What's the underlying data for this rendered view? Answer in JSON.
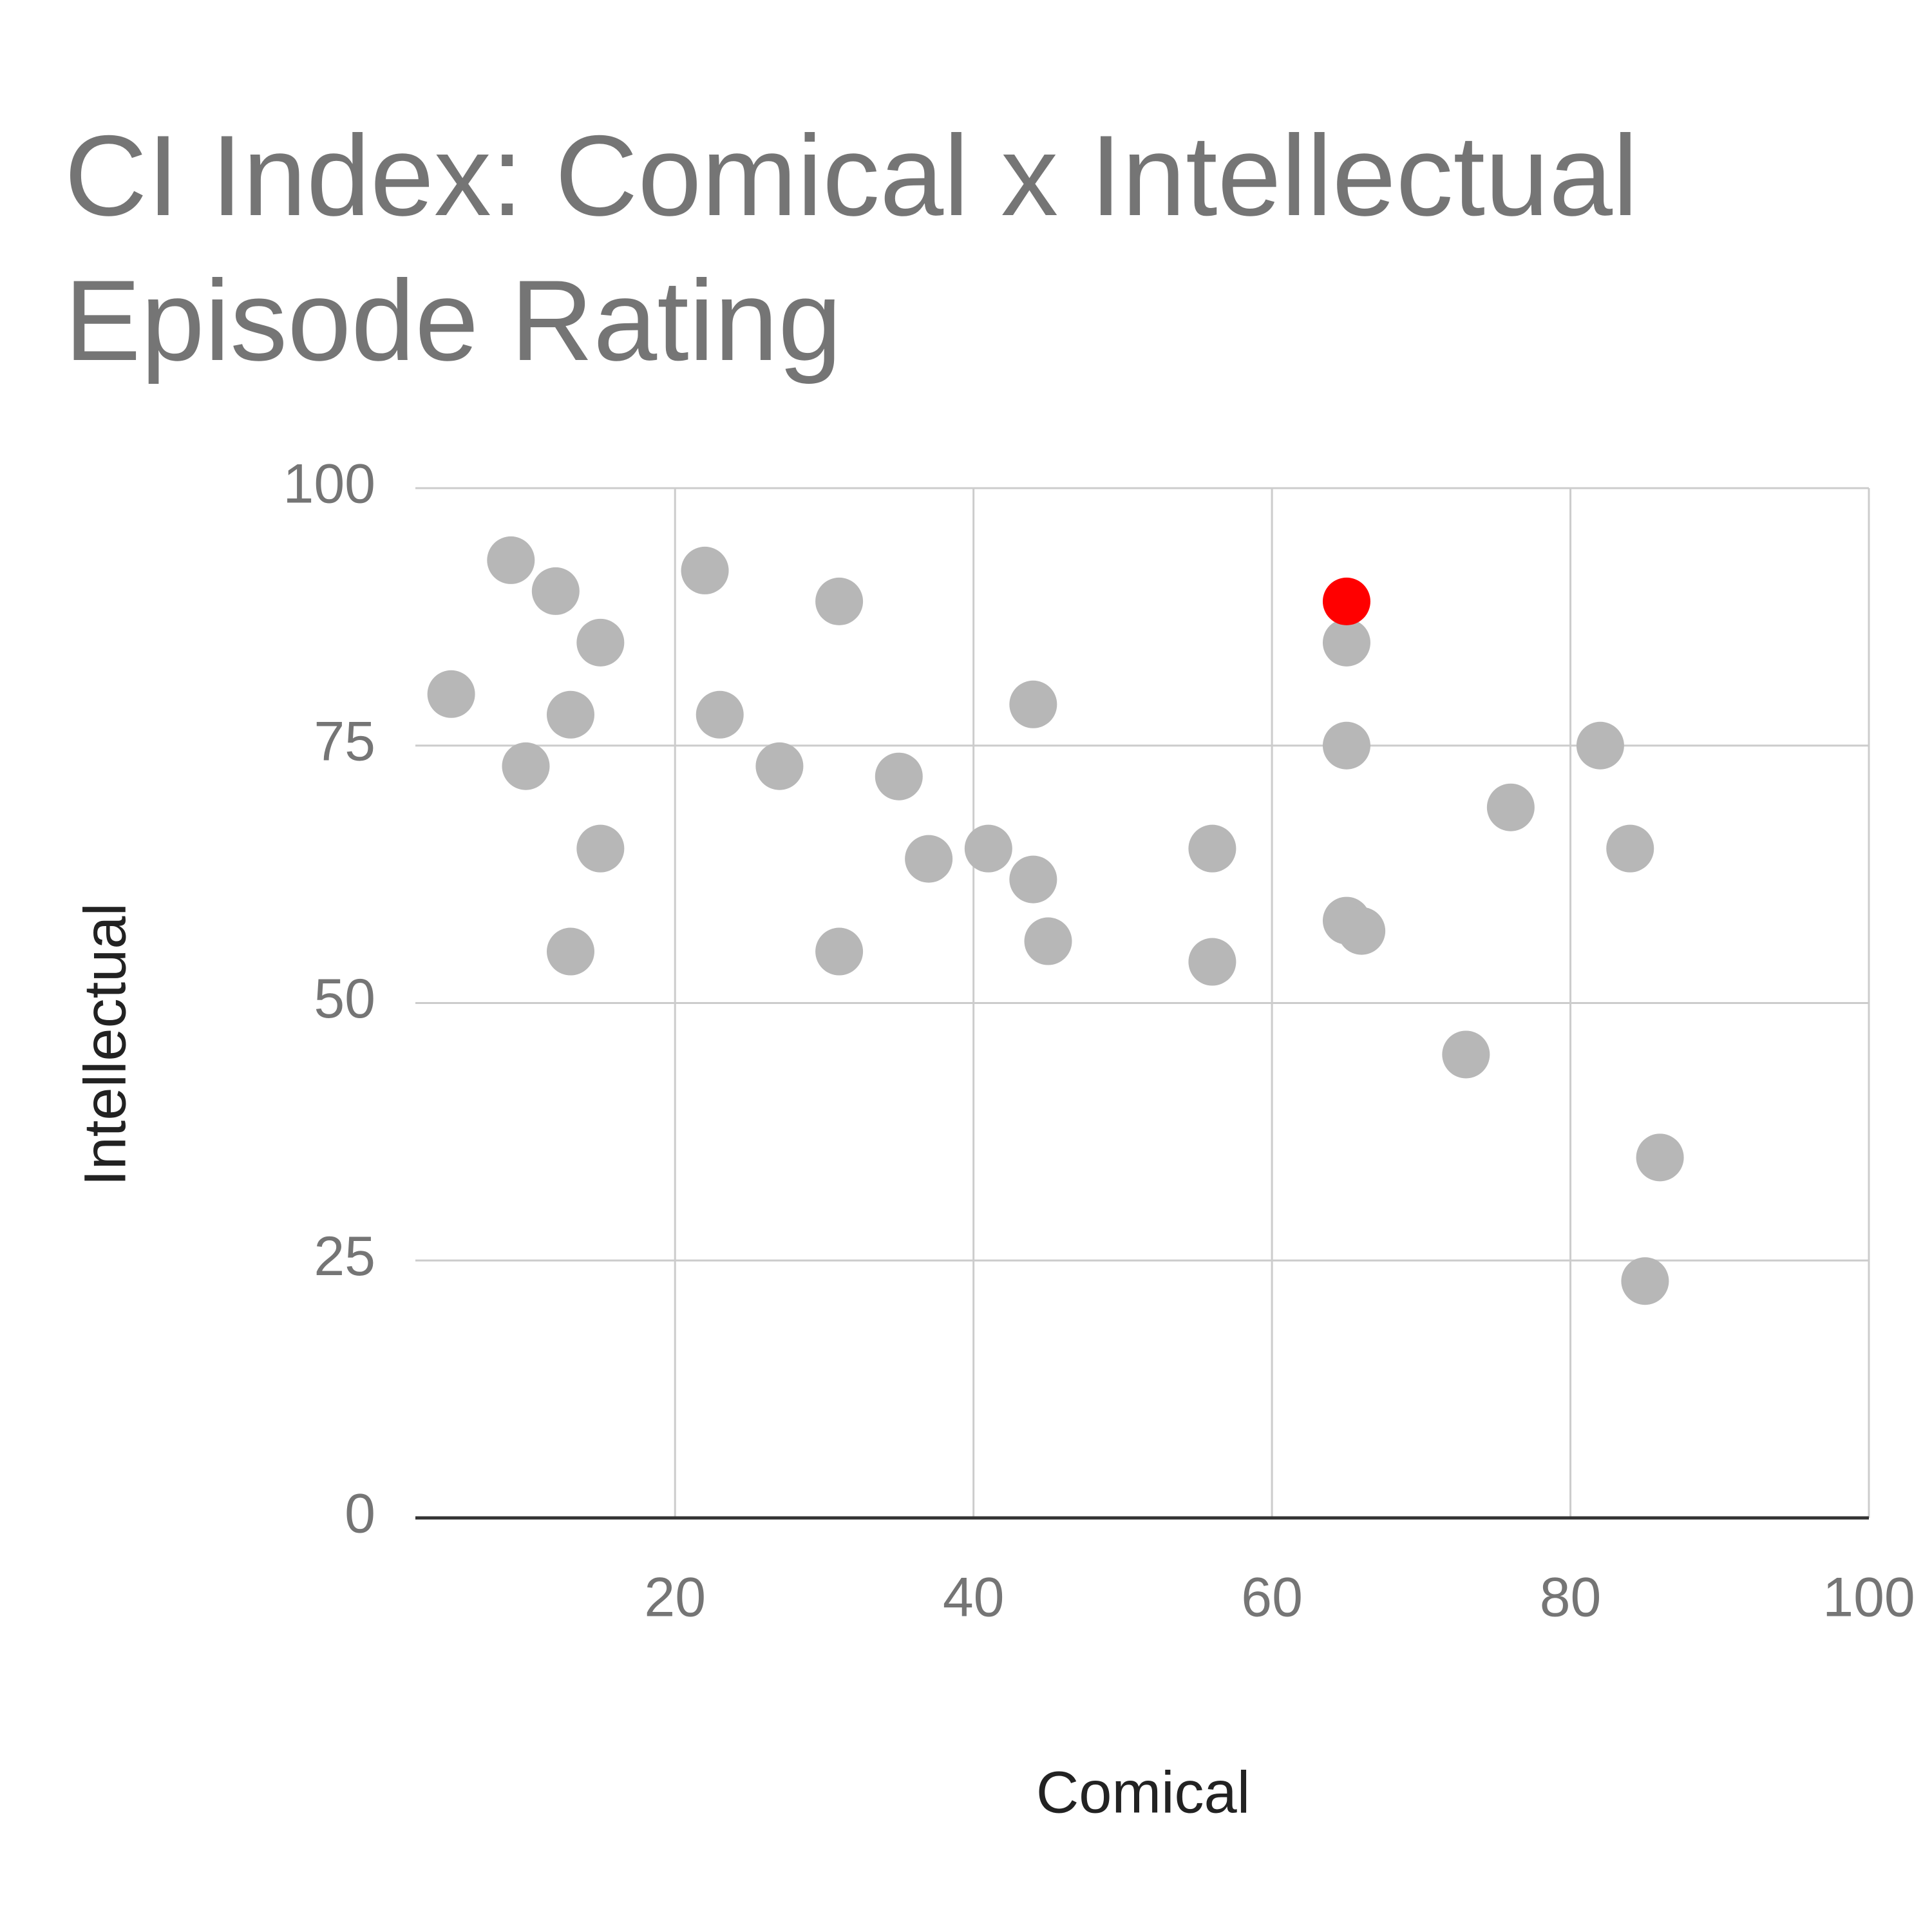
{
  "chart_data": {
    "type": "scatter",
    "title": "CI Index: Comical x Intellectual Episode Rating",
    "x_label": "Comical",
    "y_label": "Intellectual",
    "series": [
      {
        "color": "#b7b7b7",
        "x": [
          9,
          12,
          15,
          5,
          13,
          10,
          15,
          13,
          22,
          23,
          27,
          31,
          31,
          35,
          37,
          41,
          44,
          44,
          45,
          56,
          56,
          65,
          65,
          65,
          66,
          73,
          76,
          82,
          84,
          86,
          85
        ],
        "values": [
          93,
          90,
          85,
          80,
          78,
          73,
          65,
          55,
          92,
          78,
          73,
          89,
          55,
          72,
          64,
          65,
          79,
          62,
          56,
          65,
          54,
          85,
          75,
          58,
          57,
          45,
          69,
          75,
          65,
          35,
          23
        ]
      },
      {
        "color": "#ff0000",
        "x": [
          65
        ],
        "values": [
          89
        ]
      }
    ],
    "xlim": [
      2.6,
      100
    ],
    "xticks": [
      20,
      40,
      60,
      80,
      100
    ],
    "ylim": [
      0,
      100
    ],
    "yticks": [
      0,
      25,
      50,
      75,
      100
    ],
    "grid": true
  }
}
